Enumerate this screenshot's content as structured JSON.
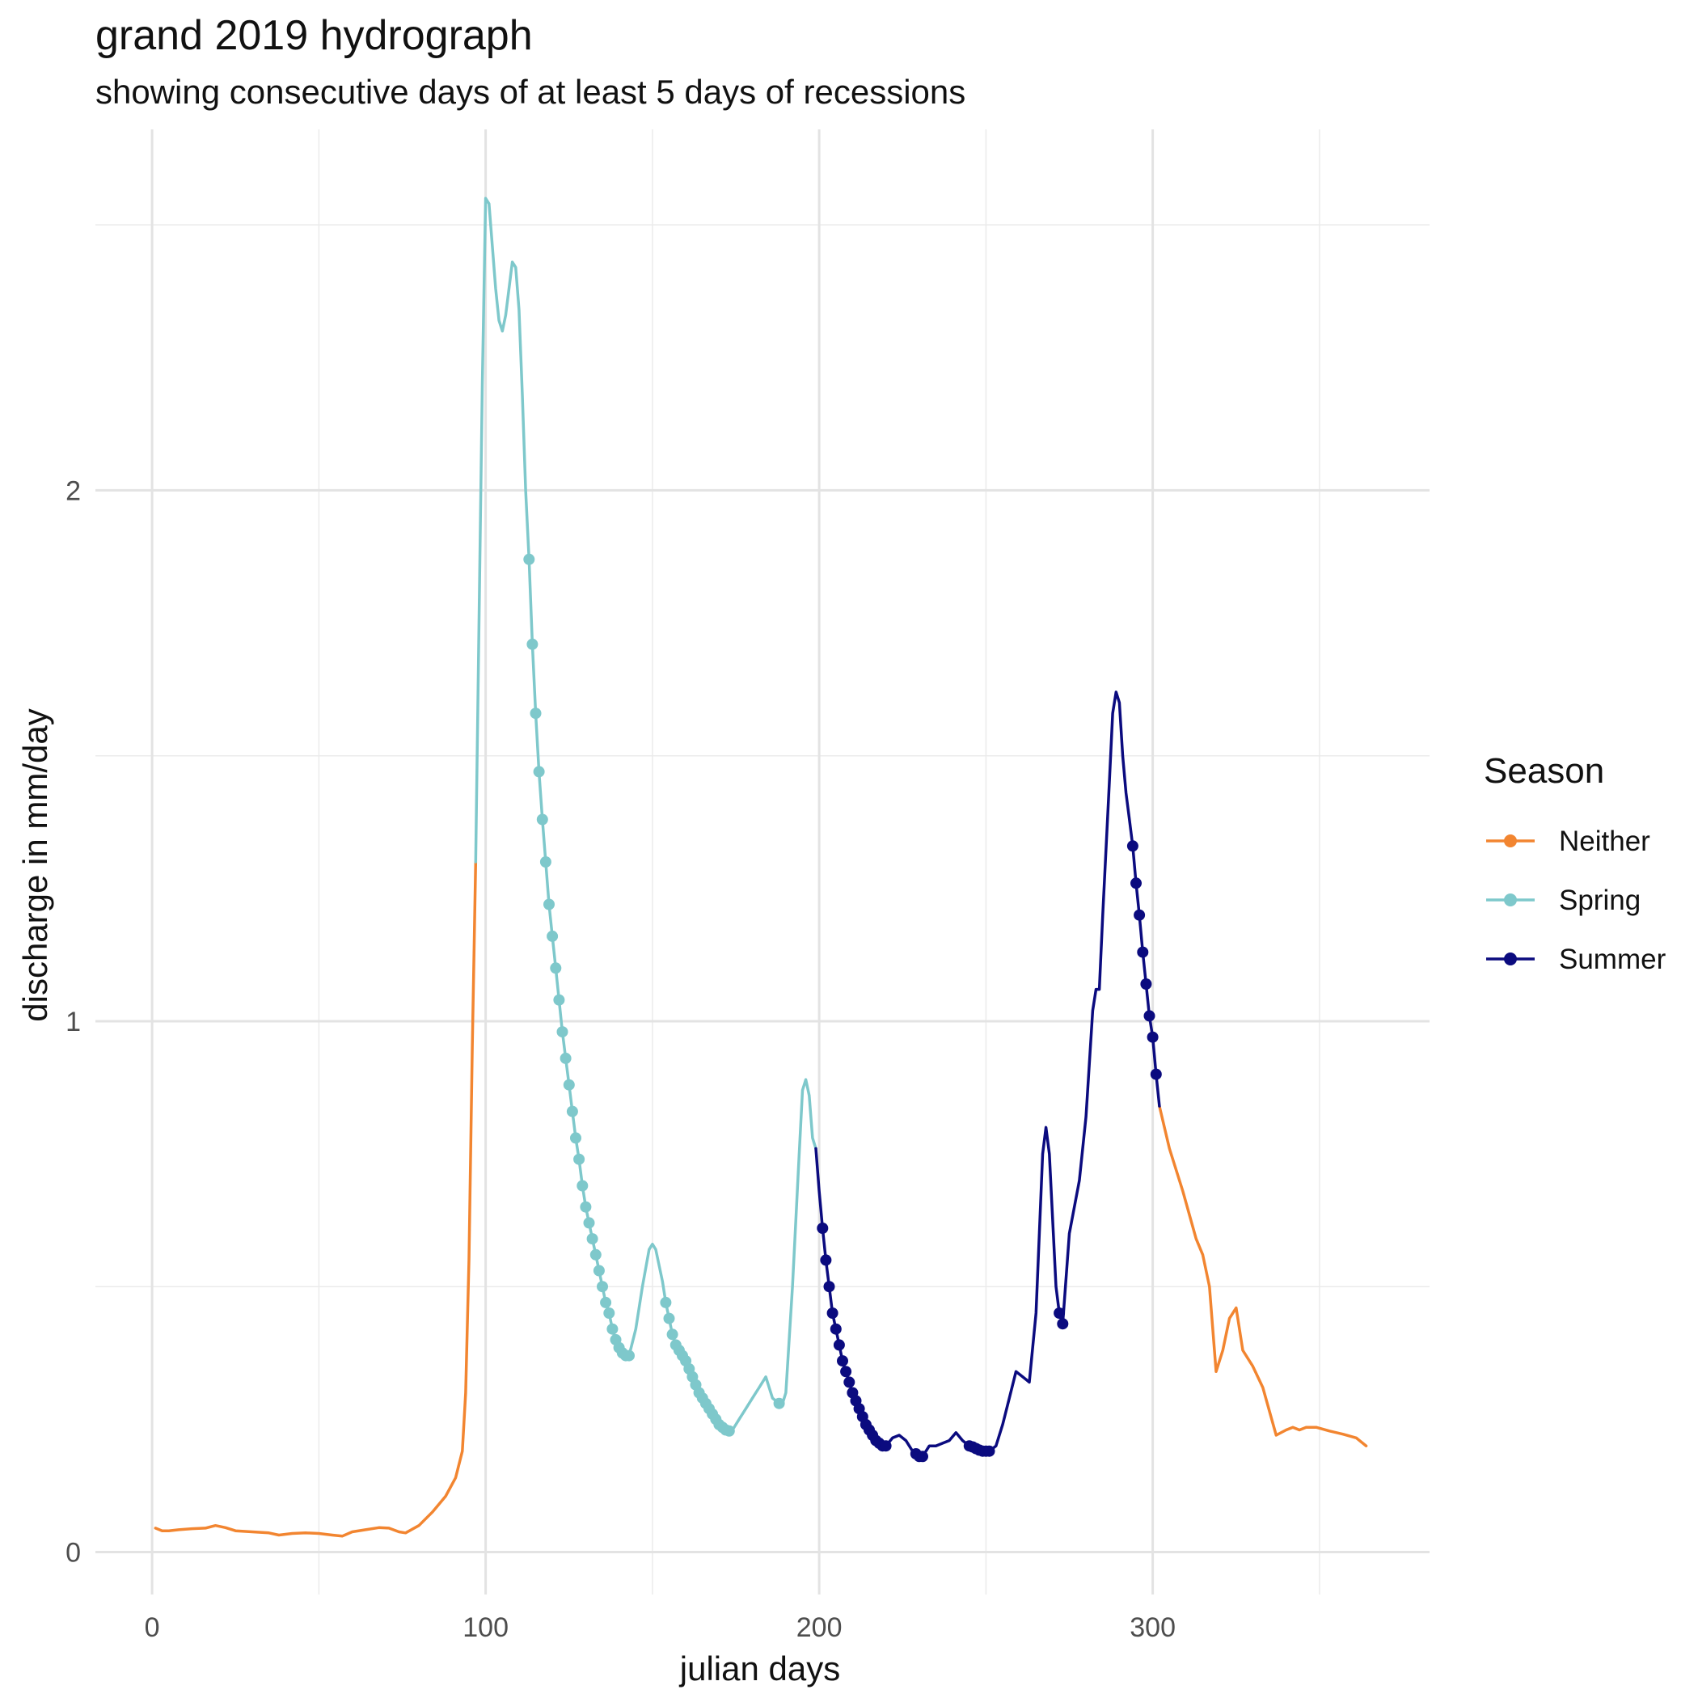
{
  "chart_data": {
    "type": "line",
    "title": "grand 2019 hydrograph",
    "subtitle": "showing consecutive days of at least 5 days of recessions",
    "xlabel": "julian days",
    "ylabel": "discharge in mm/day",
    "xlim": [
      -17,
      383
    ],
    "ylim": [
      -0.08,
      2.68
    ],
    "x_ticks": [
      0,
      100,
      200,
      300
    ],
    "y_ticks": [
      0,
      1,
      2
    ],
    "grid": true,
    "legend_title": "Season",
    "legend_position": "right",
    "series": [
      {
        "name": "Neither",
        "color": "#F28530",
        "line": [
          [
            1,
            0.045
          ],
          [
            3,
            0.04
          ],
          [
            5,
            0.04
          ],
          [
            8,
            0.042
          ],
          [
            12,
            0.044
          ],
          [
            16,
            0.045
          ],
          [
            19,
            0.05
          ],
          [
            22,
            0.046
          ],
          [
            25,
            0.04
          ],
          [
            30,
            0.038
          ],
          [
            35,
            0.036
          ],
          [
            38,
            0.032
          ],
          [
            42,
            0.035
          ],
          [
            46,
            0.036
          ],
          [
            50,
            0.035
          ],
          [
            54,
            0.032
          ],
          [
            57,
            0.03
          ],
          [
            60,
            0.038
          ],
          [
            64,
            0.042
          ],
          [
            68,
            0.046
          ],
          [
            71,
            0.045
          ],
          [
            74,
            0.038
          ],
          [
            76,
            0.036
          ],
          [
            80,
            0.05
          ],
          [
            84,
            0.075
          ],
          [
            88,
            0.105
          ],
          [
            91,
            0.14
          ],
          [
            93,
            0.19
          ],
          [
            94,
            0.3
          ],
          [
            95,
            0.55
          ],
          [
            96,
            0.95
          ],
          [
            97,
            1.3
          ]
        ],
        "markers": []
      },
      {
        "name": "Neither",
        "color": "#F28530",
        "line": [
          [
            302,
            0.84
          ],
          [
            305,
            0.76
          ],
          [
            309,
            0.68
          ],
          [
            313,
            0.59
          ],
          [
            315,
            0.56
          ],
          [
            317,
            0.5
          ],
          [
            319,
            0.34
          ],
          [
            321,
            0.38
          ],
          [
            323,
            0.44
          ],
          [
            325,
            0.46
          ],
          [
            327,
            0.38
          ],
          [
            330,
            0.35
          ],
          [
            333,
            0.31
          ],
          [
            337,
            0.22
          ],
          [
            340,
            0.23
          ],
          [
            342,
            0.235
          ],
          [
            344,
            0.23
          ],
          [
            346,
            0.235
          ],
          [
            349,
            0.235
          ],
          [
            353,
            0.228
          ],
          [
            357,
            0.222
          ],
          [
            361,
            0.215
          ],
          [
            364,
            0.2
          ]
        ],
        "markers": []
      },
      {
        "name": "Spring",
        "color": "#7EC8CB",
        "line": [
          [
            97,
            1.3
          ],
          [
            98,
            1.75
          ],
          [
            99,
            2.2
          ],
          [
            100,
            2.55
          ],
          [
            101,
            2.54
          ],
          [
            102,
            2.46
          ],
          [
            103,
            2.38
          ],
          [
            104,
            2.32
          ],
          [
            105,
            2.3
          ],
          [
            106,
            2.33
          ],
          [
            107,
            2.38
          ],
          [
            108,
            2.43
          ],
          [
            109,
            2.42
          ],
          [
            110,
            2.34
          ],
          [
            111,
            2.18
          ],
          [
            112,
            2.0
          ],
          [
            113,
            1.87
          ],
          [
            114,
            1.71
          ],
          [
            115,
            1.58
          ],
          [
            116,
            1.47
          ],
          [
            117,
            1.38
          ],
          [
            118,
            1.3
          ],
          [
            119,
            1.22
          ],
          [
            120,
            1.16
          ],
          [
            121,
            1.1
          ],
          [
            122,
            1.04
          ],
          [
            123,
            0.98
          ],
          [
            124,
            0.93
          ],
          [
            125,
            0.88
          ],
          [
            126,
            0.83
          ],
          [
            127,
            0.78
          ],
          [
            128,
            0.74
          ],
          [
            129,
            0.69
          ],
          [
            130,
            0.65
          ],
          [
            131,
            0.62
          ],
          [
            132,
            0.59
          ],
          [
            133,
            0.56
          ],
          [
            134,
            0.53
          ],
          [
            135,
            0.5
          ],
          [
            136,
            0.47
          ],
          [
            137,
            0.45
          ],
          [
            138,
            0.42
          ],
          [
            139,
            0.4
          ],
          [
            140,
            0.385
          ],
          [
            141,
            0.375
          ],
          [
            142,
            0.37
          ],
          [
            143,
            0.37
          ],
          [
            145,
            0.42
          ],
          [
            147,
            0.5
          ],
          [
            149,
            0.57
          ],
          [
            150,
            0.58
          ],
          [
            151,
            0.57
          ],
          [
            153,
            0.51
          ],
          [
            154,
            0.47
          ],
          [
            155,
            0.44
          ],
          [
            156,
            0.41
          ],
          [
            157,
            0.39
          ],
          [
            158,
            0.38
          ],
          [
            159,
            0.37
          ],
          [
            160,
            0.36
          ],
          [
            161,
            0.345
          ],
          [
            162,
            0.33
          ],
          [
            163,
            0.315
          ],
          [
            164,
            0.3
          ],
          [
            165,
            0.29
          ],
          [
            166,
            0.28
          ],
          [
            167,
            0.27
          ],
          [
            168,
            0.26
          ],
          [
            169,
            0.25
          ],
          [
            170,
            0.24
          ],
          [
            171,
            0.235
          ],
          [
            172,
            0.23
          ],
          [
            173,
            0.228
          ],
          [
            174,
            0.23
          ],
          [
            176,
            0.25
          ],
          [
            178,
            0.27
          ],
          [
            180,
            0.29
          ],
          [
            182,
            0.31
          ],
          [
            183,
            0.32
          ],
          [
            184,
            0.33
          ],
          [
            186,
            0.29
          ],
          [
            188,
            0.28
          ],
          [
            189,
            0.28
          ],
          [
            190,
            0.3
          ],
          [
            192,
            0.5
          ],
          [
            194,
            0.75
          ],
          [
            195,
            0.87
          ],
          [
            196,
            0.89
          ],
          [
            197,
            0.86
          ],
          [
            198,
            0.78
          ],
          [
            199,
            0.76
          ]
        ],
        "markers": [
          [
            113,
            1.87
          ],
          [
            114,
            1.71
          ],
          [
            115,
            1.58
          ],
          [
            116,
            1.47
          ],
          [
            117,
            1.38
          ],
          [
            118,
            1.3
          ],
          [
            119,
            1.22
          ],
          [
            120,
            1.16
          ],
          [
            121,
            1.1
          ],
          [
            122,
            1.04
          ],
          [
            123,
            0.98
          ],
          [
            124,
            0.93
          ],
          [
            125,
            0.88
          ],
          [
            126,
            0.83
          ],
          [
            127,
            0.78
          ],
          [
            128,
            0.74
          ],
          [
            129,
            0.69
          ],
          [
            130,
            0.65
          ],
          [
            131,
            0.62
          ],
          [
            132,
            0.59
          ],
          [
            133,
            0.56
          ],
          [
            134,
            0.53
          ],
          [
            135,
            0.5
          ],
          [
            136,
            0.47
          ],
          [
            137,
            0.45
          ],
          [
            138,
            0.42
          ],
          [
            139,
            0.4
          ],
          [
            140,
            0.385
          ],
          [
            141,
            0.375
          ],
          [
            142,
            0.37
          ],
          [
            143,
            0.37
          ],
          [
            154,
            0.47
          ],
          [
            155,
            0.44
          ],
          [
            156,
            0.41
          ],
          [
            157,
            0.39
          ],
          [
            158,
            0.38
          ],
          [
            159,
            0.37
          ],
          [
            160,
            0.36
          ],
          [
            161,
            0.345
          ],
          [
            162,
            0.33
          ],
          [
            163,
            0.315
          ],
          [
            164,
            0.3
          ],
          [
            165,
            0.29
          ],
          [
            166,
            0.28
          ],
          [
            167,
            0.27
          ],
          [
            168,
            0.26
          ],
          [
            169,
            0.25
          ],
          [
            170,
            0.24
          ],
          [
            171,
            0.235
          ],
          [
            172,
            0.23
          ],
          [
            173,
            0.228
          ],
          [
            188,
            0.28
          ]
        ]
      },
      {
        "name": "Summer",
        "color": "#0B0B7F",
        "line": [
          [
            199,
            0.76
          ],
          [
            200,
            0.68
          ],
          [
            201,
            0.61
          ],
          [
            202,
            0.55
          ],
          [
            203,
            0.5
          ],
          [
            204,
            0.45
          ],
          [
            205,
            0.42
          ],
          [
            206,
            0.39
          ],
          [
            207,
            0.36
          ],
          [
            208,
            0.34
          ],
          [
            209,
            0.32
          ],
          [
            210,
            0.3
          ],
          [
            211,
            0.285
          ],
          [
            212,
            0.27
          ],
          [
            213,
            0.255
          ],
          [
            214,
            0.24
          ],
          [
            215,
            0.23
          ],
          [
            216,
            0.22
          ],
          [
            217,
            0.21
          ],
          [
            218,
            0.205
          ],
          [
            219,
            0.2
          ],
          [
            220,
            0.2
          ],
          [
            222,
            0.215
          ],
          [
            224,
            0.22
          ],
          [
            226,
            0.21
          ],
          [
            228,
            0.19
          ],
          [
            230,
            0.18
          ],
          [
            231,
            0.18
          ],
          [
            233,
            0.2
          ],
          [
            235,
            0.2
          ],
          [
            237,
            0.205
          ],
          [
            239,
            0.21
          ],
          [
            241,
            0.225
          ],
          [
            243,
            0.21
          ],
          [
            245,
            0.2
          ],
          [
            247,
            0.195
          ],
          [
            249,
            0.19
          ],
          [
            251,
            0.19
          ],
          [
            253,
            0.2
          ],
          [
            255,
            0.24
          ],
          [
            257,
            0.29
          ],
          [
            259,
            0.34
          ],
          [
            261,
            0.33
          ],
          [
            263,
            0.32
          ],
          [
            265,
            0.45
          ],
          [
            267,
            0.75
          ],
          [
            268,
            0.8
          ],
          [
            269,
            0.75
          ],
          [
            271,
            0.5
          ],
          [
            272,
            0.45
          ],
          [
            273,
            0.43
          ],
          [
            275,
            0.6
          ],
          [
            278,
            0.7
          ],
          [
            280,
            0.82
          ],
          [
            282,
            1.02
          ],
          [
            283,
            1.06
          ],
          [
            284,
            1.06
          ],
          [
            285,
            1.2
          ],
          [
            287,
            1.45
          ],
          [
            288,
            1.58
          ],
          [
            289,
            1.62
          ],
          [
            290,
            1.6
          ],
          [
            291,
            1.5
          ],
          [
            292,
            1.43
          ],
          [
            293,
            1.38
          ],
          [
            294,
            1.33
          ],
          [
            295,
            1.26
          ],
          [
            296,
            1.2
          ],
          [
            297,
            1.13
          ],
          [
            298,
            1.07
          ],
          [
            299,
            1.01
          ],
          [
            300,
            0.97
          ],
          [
            301,
            0.9
          ],
          [
            302,
            0.84
          ]
        ],
        "markers": [
          [
            201,
            0.61
          ],
          [
            202,
            0.55
          ],
          [
            203,
            0.5
          ],
          [
            204,
            0.45
          ],
          [
            205,
            0.42
          ],
          [
            206,
            0.39
          ],
          [
            207,
            0.36
          ],
          [
            208,
            0.34
          ],
          [
            209,
            0.32
          ],
          [
            210,
            0.3
          ],
          [
            211,
            0.285
          ],
          [
            212,
            0.27
          ],
          [
            213,
            0.255
          ],
          [
            214,
            0.24
          ],
          [
            215,
            0.23
          ],
          [
            216,
            0.22
          ],
          [
            217,
            0.21
          ],
          [
            218,
            0.205
          ],
          [
            219,
            0.2
          ],
          [
            220,
            0.2
          ],
          [
            229,
            0.185
          ],
          [
            230,
            0.18
          ],
          [
            231,
            0.18
          ],
          [
            245,
            0.2
          ],
          [
            246,
            0.198
          ],
          [
            247,
            0.195
          ],
          [
            248,
            0.192
          ],
          [
            249,
            0.19
          ],
          [
            250,
            0.19
          ],
          [
            251,
            0.19
          ],
          [
            272,
            0.45
          ],
          [
            273,
            0.43
          ],
          [
            294,
            1.33
          ],
          [
            295,
            1.26
          ],
          [
            296,
            1.2
          ],
          [
            297,
            1.13
          ],
          [
            298,
            1.07
          ],
          [
            299,
            1.01
          ],
          [
            300,
            0.97
          ],
          [
            301,
            0.9
          ]
        ]
      }
    ],
    "legend": [
      {
        "label": "Neither",
        "color": "#F28530"
      },
      {
        "label": "Spring",
        "color": "#7EC8CB"
      },
      {
        "label": "Summer",
        "color": "#0B0B7F"
      }
    ]
  }
}
